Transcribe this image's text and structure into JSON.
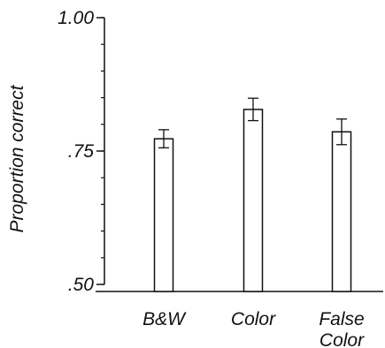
{
  "chart_data": {
    "type": "bar",
    "ylabel": "Proportion correct",
    "xlabel": "",
    "ylim": [
      0.5,
      1.0
    ],
    "y_ticks": [
      {
        "value": 0.5,
        "label": ".50"
      },
      {
        "value": 0.75,
        "label": ".75"
      },
      {
        "value": 1.0,
        "label": "1.00"
      }
    ],
    "categories": [
      {
        "lines": [
          "B&W"
        ]
      },
      {
        "lines": [
          "Color"
        ]
      },
      {
        "lines": [
          "False",
          "Color"
        ]
      }
    ],
    "values": [
      0.773,
      0.828,
      0.786
    ],
    "error": [
      0.017,
      0.021,
      0.024
    ],
    "bar_fill": "#ffffff",
    "stroke_color": "#111111",
    "grid": false
  }
}
